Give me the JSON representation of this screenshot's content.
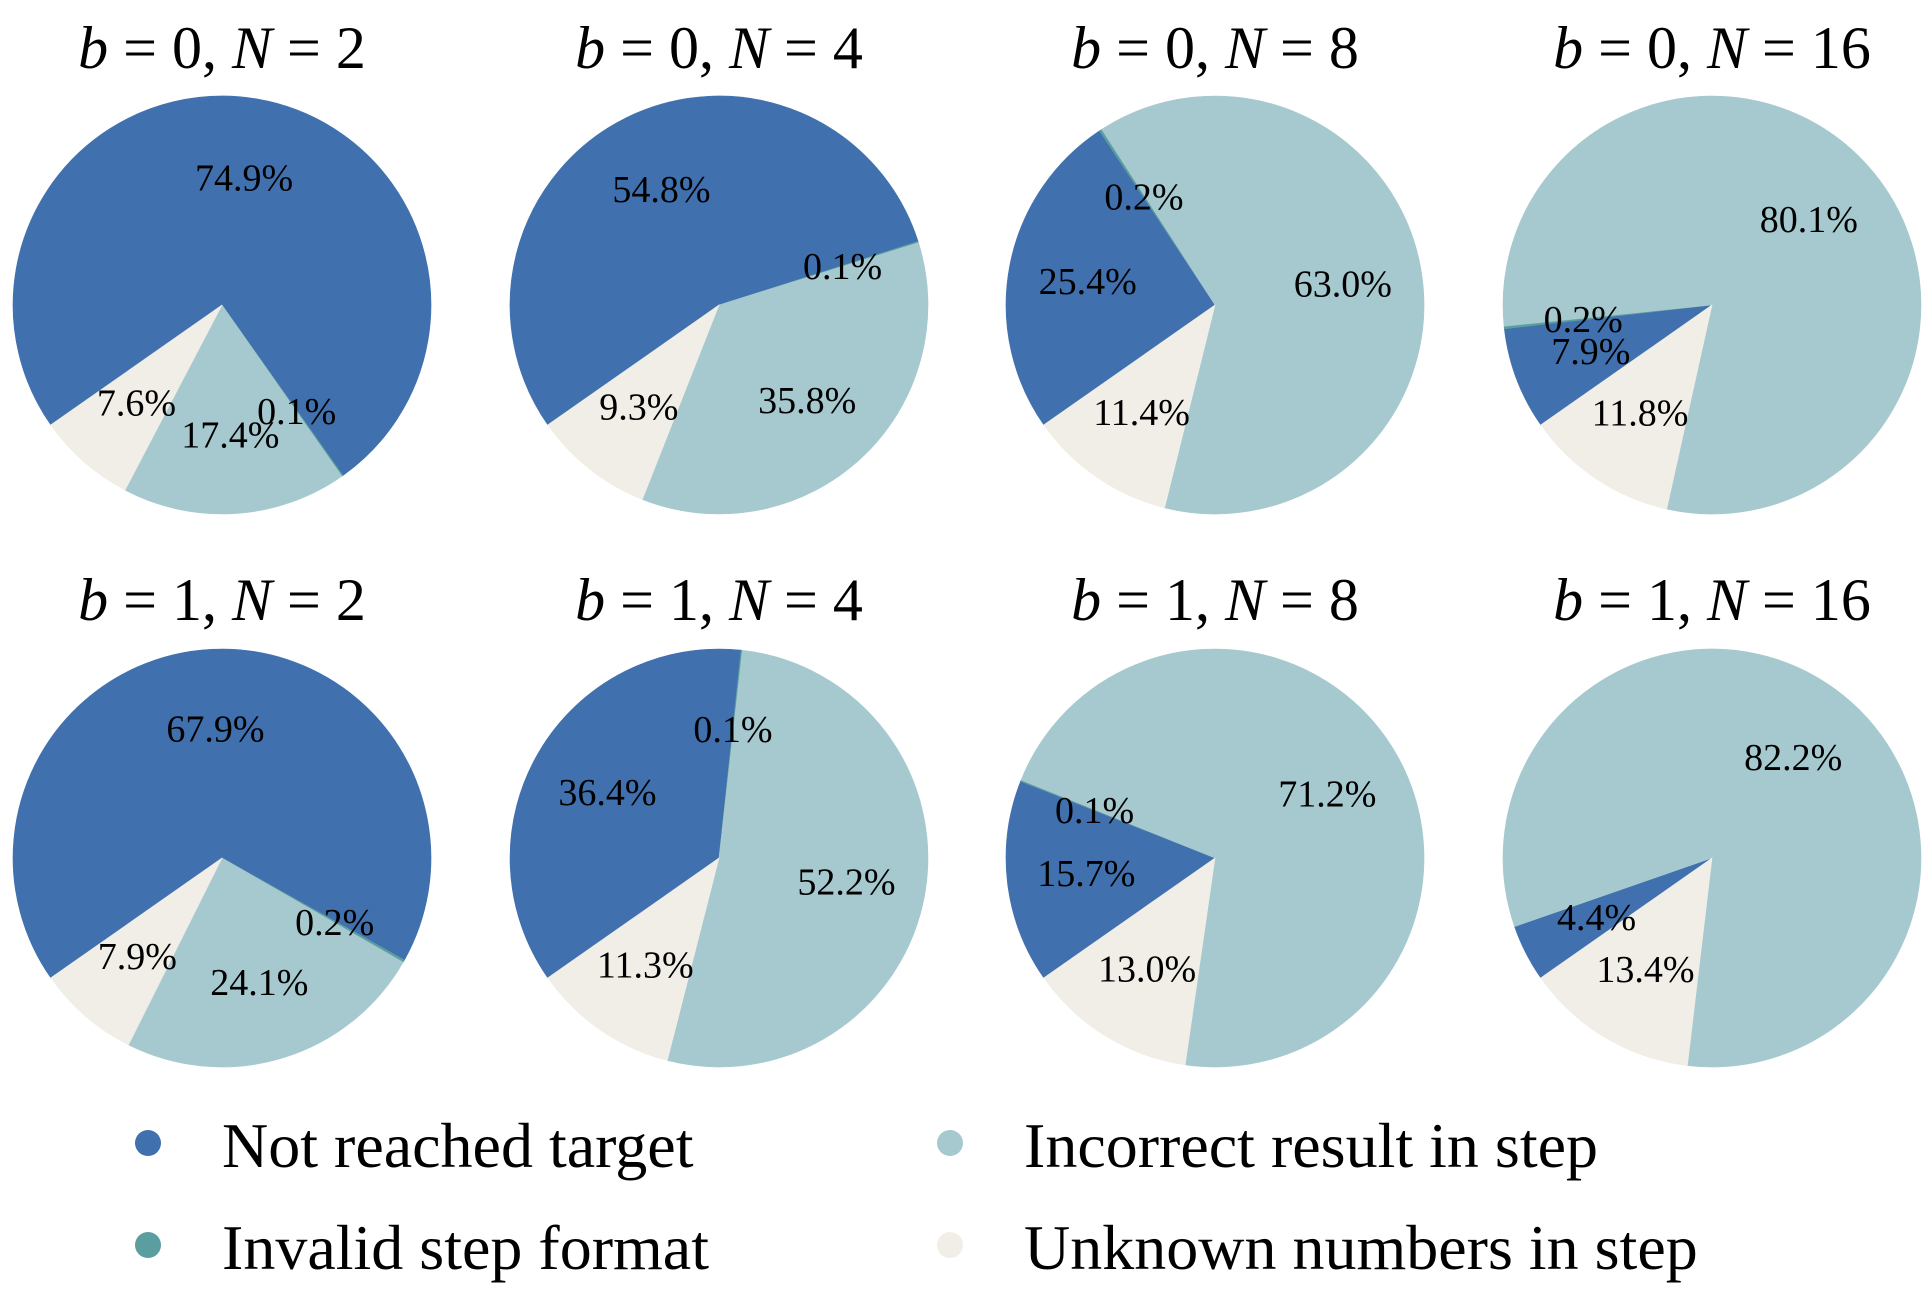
{
  "legend": {
    "placement": "bottom",
    "entries": [
      {
        "label": "Not reached target",
        "color": "#4070AE"
      },
      {
        "label": "Incorrect result in step",
        "color": "#A6C9CF"
      },
      {
        "label": "Invalid step format",
        "color": "#5B9EA0"
      },
      {
        "label": "Unknown numbers in step",
        "color": "#F1EEE8"
      }
    ]
  },
  "chart_data": [
    {
      "type": "pie",
      "title": "b = 0, N = 2",
      "b": "0",
      "N": "2",
      "categories": [
        "Not reached target",
        "Invalid step format",
        "Incorrect result in step",
        "Unknown numbers in step"
      ],
      "values": [
        74.9,
        0.1,
        17.4,
        7.6
      ],
      "labels": [
        "74.9%",
        "0.1%",
        "17.4%",
        "7.6%"
      ]
    },
    {
      "type": "pie",
      "title": "b = 0, N = 4",
      "b": "0",
      "N": "4",
      "categories": [
        "Not reached target",
        "Invalid step format",
        "Incorrect result in step",
        "Unknown numbers in step"
      ],
      "values": [
        54.8,
        0.1,
        35.8,
        9.3
      ],
      "labels": [
        "54.8%",
        "0.1%",
        "35.8%",
        "9.3%"
      ]
    },
    {
      "type": "pie",
      "title": "b = 0, N = 8",
      "b": "0",
      "N": "8",
      "categories": [
        "Not reached target",
        "Invalid step format",
        "Incorrect result in step",
        "Unknown numbers in step"
      ],
      "values": [
        25.4,
        0.2,
        63.0,
        11.4
      ],
      "labels": [
        "25.4%",
        "0.2%",
        "63.0%",
        "11.4%"
      ]
    },
    {
      "type": "pie",
      "title": "b = 0, N = 16",
      "b": "0",
      "N": "16",
      "categories": [
        "Not reached target",
        "Invalid step format",
        "Incorrect result in step",
        "Unknown numbers in step"
      ],
      "values": [
        7.9,
        0.2,
        80.1,
        11.8
      ],
      "labels": [
        "7.9%",
        "0.2%",
        "80.1%",
        "11.8%"
      ]
    },
    {
      "type": "pie",
      "title": "b = 1, N = 2",
      "b": "1",
      "N": "2",
      "categories": [
        "Not reached target",
        "Invalid step format",
        "Incorrect result in step",
        "Unknown numbers in step"
      ],
      "values": [
        67.9,
        0.2,
        24.1,
        7.9
      ],
      "labels": [
        "67.9%",
        "0.2%",
        "24.1%",
        "7.9%"
      ]
    },
    {
      "type": "pie",
      "title": "b = 1, N = 4",
      "b": "1",
      "N": "4",
      "categories": [
        "Not reached target",
        "Invalid step format",
        "Incorrect result in step",
        "Unknown numbers in step"
      ],
      "values": [
        36.4,
        0.1,
        52.2,
        11.3
      ],
      "labels": [
        "36.4%",
        "0.1%",
        "52.2%",
        "11.3%"
      ]
    },
    {
      "type": "pie",
      "title": "b = 1, N = 8",
      "b": "1",
      "N": "8",
      "categories": [
        "Not reached target",
        "Invalid step format",
        "Incorrect result in step",
        "Unknown numbers in step"
      ],
      "values": [
        15.7,
        0.1,
        71.2,
        13.0
      ],
      "labels": [
        "15.7%",
        "0.1%",
        "71.2%",
        "13.0%"
      ]
    },
    {
      "type": "pie",
      "title": "b = 1, N = 16",
      "b": "1",
      "N": "16",
      "categories": [
        "Not reached target",
        "Incorrect result in step",
        "Unknown numbers in step"
      ],
      "values": [
        4.4,
        82.2,
        13.4
      ],
      "labels": [
        "4.4%",
        "82.2%",
        "13.4%"
      ]
    }
  ]
}
